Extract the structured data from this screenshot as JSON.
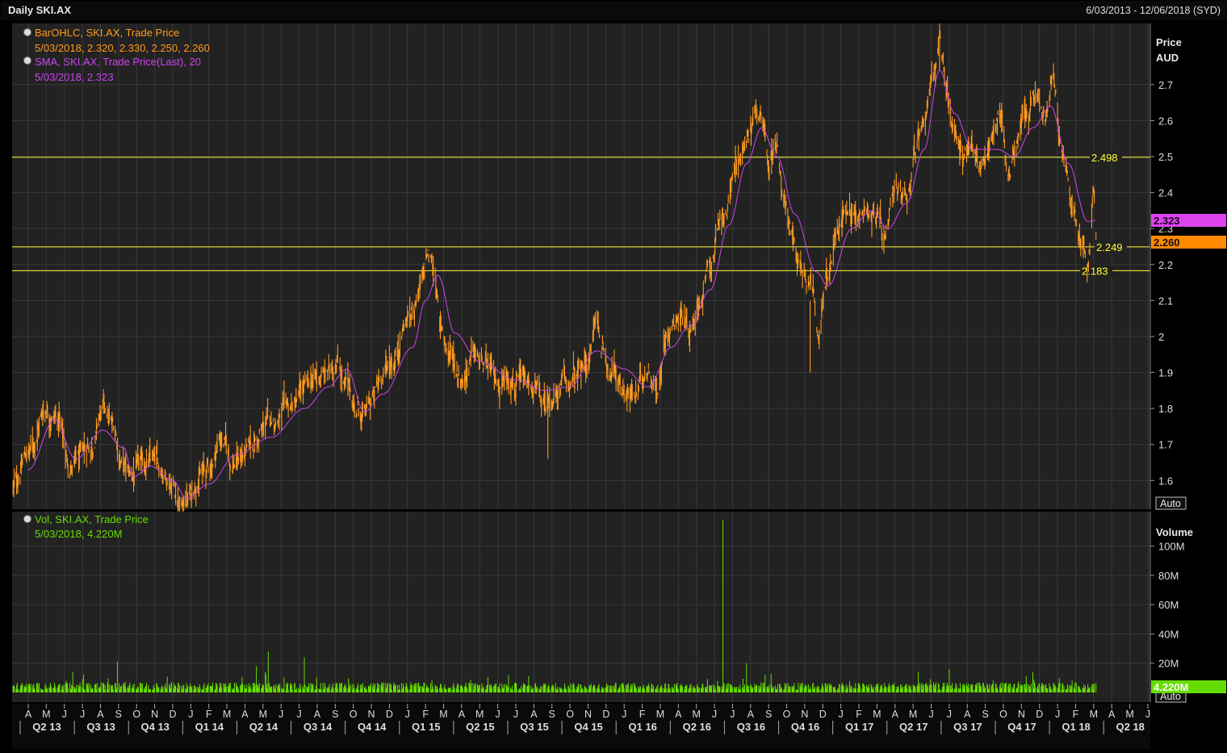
{
  "header": {
    "title": "Daily SKI.AX",
    "date_range": "6/03/2013 - 12/06/2018 (SYD)"
  },
  "colors": {
    "background": "#000000",
    "panel": "#222222",
    "grid": "#3a3a3a",
    "price": "#ff9a1f",
    "sma": "#cc44ee",
    "volume": "#66dd00",
    "hline": "#ffff33",
    "axis_text": "#dddddd"
  },
  "legend": {
    "price_series": "BarOHLC, SKI.AX, Trade Price",
    "price_values": "5/03/2018, 2.320, 2.330, 2.250, 2.260",
    "sma_series": "SMA, SKI.AX, Trade Price(Last),  20",
    "sma_values": "5/03/2018, 2.323",
    "vol_series": "Vol, SKI.AX, Trade Price",
    "vol_values": "5/03/2018, 4.220M"
  },
  "price_axis": {
    "label1": "Price",
    "label2": "AUD",
    "ticks": [
      "1.6",
      "1.7",
      "1.8",
      "1.9",
      "2",
      "2.1",
      "2.2",
      "2.3",
      "2.4",
      "2.5",
      "2.6",
      "2.7"
    ],
    "tick_values": [
      1.6,
      1.7,
      1.8,
      1.9,
      2.0,
      2.1,
      2.2,
      2.3,
      2.4,
      2.5,
      2.6,
      2.7
    ],
    "range": [
      1.52,
      2.87
    ],
    "auto_label": "Auto",
    "sma_tag": "2.323",
    "last_tag": "2.260"
  },
  "volume_axis": {
    "label": "Volume",
    "ticks": [
      "20M",
      "40M",
      "60M",
      "80M",
      "100M"
    ],
    "tick_values": [
      20,
      40,
      60,
      80,
      100
    ],
    "range_millions": [
      0,
      118
    ],
    "auto_label": "Auto",
    "last_tag": "4.220M"
  },
  "time_axis": {
    "months": [
      "A",
      "M",
      "J",
      "J",
      "A",
      "S",
      "O",
      "N",
      "D",
      "J",
      "F",
      "M",
      "A",
      "M",
      "J",
      "J",
      "A",
      "S",
      "O",
      "N",
      "D",
      "J",
      "F",
      "M",
      "A",
      "M",
      "J",
      "J",
      "A",
      "S",
      "O",
      "N",
      "D",
      "J",
      "F",
      "M",
      "A",
      "M",
      "J",
      "J",
      "A",
      "S",
      "O",
      "N",
      "D",
      "J",
      "F",
      "M",
      "A",
      "M",
      "J",
      "J",
      "A",
      "S",
      "O",
      "N",
      "D",
      "J",
      "F",
      "M",
      "A",
      "M",
      "J"
    ],
    "quarters": [
      "Q2 13",
      "Q3 13",
      "Q4 13",
      "Q1 14",
      "Q2 14",
      "Q3 14",
      "Q4 14",
      "Q1 15",
      "Q2 15",
      "Q3 15",
      "Q4 15",
      "Q1 16",
      "Q2 16",
      "Q3 16",
      "Q4 16",
      "Q1 17",
      "Q2 17",
      "Q3 17",
      "Q4 17",
      "Q1 18",
      "Q2 18"
    ]
  },
  "horizontal_lines": [
    {
      "value": 2.498,
      "label": "2.498"
    },
    {
      "value": 2.249,
      "label": "2.249"
    },
    {
      "value": 2.183,
      "label": "2.183"
    }
  ],
  "chart_data": {
    "type": "line",
    "price_series_name": "BarOHLC, SKI.AX, Trade Price",
    "sma_series_name": "SMA, SKI.AX, Trade Price(Last),  20",
    "volume_series_name": "Vol, SKI.AX, Trade Price",
    "price_points": [
      [
        "2013-03-06",
        1.58
      ],
      [
        "2013-04-01",
        1.68
      ],
      [
        "2013-05-01",
        1.8
      ],
      [
        "2013-05-20",
        1.78
      ],
      [
        "2013-06-10",
        1.64
      ],
      [
        "2013-06-25",
        1.65
      ],
      [
        "2013-07-15",
        1.7
      ],
      [
        "2013-08-05",
        1.79
      ],
      [
        "2013-08-25",
        1.74
      ],
      [
        "2013-09-05",
        1.66
      ],
      [
        "2013-09-20",
        1.61
      ],
      [
        "2013-10-05",
        1.63
      ],
      [
        "2013-10-25",
        1.65
      ],
      [
        "2013-11-15",
        1.63
      ],
      [
        "2013-11-30",
        1.6
      ],
      [
        "2013-12-15",
        1.53
      ],
      [
        "2014-01-01",
        1.56
      ],
      [
        "2014-01-15",
        1.62
      ],
      [
        "2014-02-01",
        1.63
      ],
      [
        "2014-02-20",
        1.72
      ],
      [
        "2014-03-10",
        1.65
      ],
      [
        "2014-04-01",
        1.67
      ],
      [
        "2014-04-20",
        1.71
      ],
      [
        "2014-05-10",
        1.76
      ],
      [
        "2014-06-01",
        1.78
      ],
      [
        "2014-06-20",
        1.8
      ],
      [
        "2014-07-10",
        1.85
      ],
      [
        "2014-08-01",
        1.88
      ],
      [
        "2014-08-20",
        1.9
      ],
      [
        "2014-09-05",
        1.94
      ],
      [
        "2014-09-20",
        1.86
      ],
      [
        "2014-10-05",
        1.8
      ],
      [
        "2014-10-20",
        1.78
      ],
      [
        "2014-11-05",
        1.83
      ],
      [
        "2014-11-20",
        1.9
      ],
      [
        "2014-12-05",
        1.93
      ],
      [
        "2015-01-01",
        2.05
      ],
      [
        "2015-01-25",
        2.14
      ],
      [
        "2015-02-05",
        2.22
      ],
      [
        "2015-02-15",
        2.18
      ],
      [
        "2015-02-25",
        2.02
      ],
      [
        "2015-03-10",
        1.96
      ],
      [
        "2015-04-01",
        1.89
      ],
      [
        "2015-04-20",
        1.95
      ],
      [
        "2015-05-10",
        1.91
      ],
      [
        "2015-06-01",
        1.87
      ],
      [
        "2015-06-20",
        1.9
      ],
      [
        "2015-07-10",
        1.86
      ],
      [
        "2015-08-01",
        1.85
      ],
      [
        "2015-08-20",
        1.8
      ],
      [
        "2015-09-05",
        1.84
      ],
      [
        "2015-09-25",
        1.86
      ],
      [
        "2015-10-10",
        1.88
      ],
      [
        "2015-11-01",
        1.93
      ],
      [
        "2015-11-15",
        2.05
      ],
      [
        "2015-11-25",
        1.97
      ],
      [
        "2015-12-10",
        1.91
      ],
      [
        "2016-01-01",
        1.86
      ],
      [
        "2016-01-20",
        1.83
      ],
      [
        "2016-02-10",
        1.92
      ],
      [
        "2016-02-25",
        1.86
      ],
      [
        "2016-03-15",
        2.03
      ],
      [
        "2016-04-01",
        2.07
      ],
      [
        "2016-04-20",
        2.03
      ],
      [
        "2016-05-10",
        2.12
      ],
      [
        "2016-05-25",
        2.2
      ],
      [
        "2016-06-10",
        2.3
      ],
      [
        "2016-06-25",
        2.37
      ],
      [
        "2016-07-10",
        2.5
      ],
      [
        "2016-07-25",
        2.53
      ],
      [
        "2016-08-10",
        2.63
      ],
      [
        "2016-08-20",
        2.58
      ],
      [
        "2016-09-01",
        2.48
      ],
      [
        "2016-09-15",
        2.55
      ],
      [
        "2016-09-25",
        2.41
      ],
      [
        "2016-10-10",
        2.28
      ],
      [
        "2016-10-25",
        2.2
      ],
      [
        "2016-11-10",
        2.17
      ],
      [
        "2016-11-25",
        2.03
      ],
      [
        "2016-12-10",
        2.17
      ],
      [
        "2016-12-25",
        2.28
      ],
      [
        "2017-01-15",
        2.37
      ],
      [
        "2017-02-01",
        2.33
      ],
      [
        "2017-02-15",
        2.36
      ],
      [
        "2017-03-01",
        2.34
      ],
      [
        "2017-03-15",
        2.25
      ],
      [
        "2017-04-01",
        2.38
      ],
      [
        "2017-04-20",
        2.4
      ],
      [
        "2017-05-05",
        2.52
      ],
      [
        "2017-05-20",
        2.62
      ],
      [
        "2017-06-05",
        2.74
      ],
      [
        "2017-06-15",
        2.82
      ],
      [
        "2017-06-25",
        2.68
      ],
      [
        "2017-07-10",
        2.58
      ],
      [
        "2017-07-25",
        2.5
      ],
      [
        "2017-08-10",
        2.52
      ],
      [
        "2017-08-25",
        2.48
      ],
      [
        "2017-09-10",
        2.55
      ],
      [
        "2017-09-25",
        2.63
      ],
      [
        "2017-10-10",
        2.46
      ],
      [
        "2017-10-25",
        2.54
      ],
      [
        "2017-11-10",
        2.62
      ],
      [
        "2017-11-25",
        2.66
      ],
      [
        "2017-12-10",
        2.6
      ],
      [
        "2017-12-25",
        2.7
      ],
      [
        "2018-01-10",
        2.5
      ],
      [
        "2018-01-25",
        2.37
      ],
      [
        "2018-02-10",
        2.28
      ],
      [
        "2018-02-20",
        2.21
      ],
      [
        "2018-03-01",
        2.4
      ],
      [
        "2018-03-05",
        2.26
      ]
    ],
    "sma_points": [
      [
        "2013-04-01",
        1.63
      ],
      [
        "2013-05-15",
        1.77
      ],
      [
        "2013-06-20",
        1.66
      ],
      [
        "2013-08-05",
        1.74
      ],
      [
        "2013-09-10",
        1.69
      ],
      [
        "2013-09-25",
        1.61
      ],
      [
        "2013-10-25",
        1.64
      ],
      [
        "2013-12-01",
        1.6
      ],
      [
        "2013-12-25",
        1.55
      ],
      [
        "2014-02-01",
        1.59
      ],
      [
        "2014-03-15",
        1.67
      ],
      [
        "2014-05-15",
        1.72
      ],
      [
        "2014-07-10",
        1.8
      ],
      [
        "2014-08-20",
        1.86
      ],
      [
        "2014-09-20",
        1.91
      ],
      [
        "2014-10-20",
        1.79
      ],
      [
        "2014-11-20",
        1.84
      ],
      [
        "2015-01-10",
        1.97
      ],
      [
        "2015-02-01",
        2.1
      ],
      [
        "2015-02-20",
        2.17
      ],
      [
        "2015-03-20",
        2.01
      ],
      [
        "2015-05-01",
        1.93
      ],
      [
        "2015-07-01",
        1.88
      ],
      [
        "2015-08-20",
        1.85
      ],
      [
        "2015-10-01",
        1.86
      ],
      [
        "2015-11-15",
        1.96
      ],
      [
        "2016-01-01",
        1.91
      ],
      [
        "2016-02-10",
        1.86
      ],
      [
        "2016-03-20",
        1.97
      ],
      [
        "2016-04-20",
        2.03
      ],
      [
        "2016-05-25",
        2.13
      ],
      [
        "2016-06-25",
        2.31
      ],
      [
        "2016-07-25",
        2.48
      ],
      [
        "2016-08-20",
        2.58
      ],
      [
        "2016-09-15",
        2.5
      ],
      [
        "2016-10-15",
        2.34
      ],
      [
        "2016-11-20",
        2.18
      ],
      [
        "2016-12-10",
        2.14
      ],
      [
        "2017-01-20",
        2.3
      ],
      [
        "2017-02-20",
        2.35
      ],
      [
        "2017-03-20",
        2.3
      ],
      [
        "2017-04-20",
        2.37
      ],
      [
        "2017-05-20",
        2.52
      ],
      [
        "2017-06-15",
        2.74
      ],
      [
        "2017-07-10",
        2.62
      ],
      [
        "2017-08-10",
        2.52
      ],
      [
        "2017-09-20",
        2.52
      ],
      [
        "2017-10-20",
        2.5
      ],
      [
        "2017-11-20",
        2.58
      ],
      [
        "2017-12-20",
        2.64
      ],
      [
        "2018-01-20",
        2.48
      ],
      [
        "2018-02-20",
        2.32
      ],
      [
        "2018-03-05",
        2.323
      ]
    ],
    "volume_baseline_millions": 4,
    "volume_spikes": [
      [
        "2013-06-15",
        14
      ],
      [
        "2013-08-30",
        21
      ],
      [
        "2014-04-20",
        18
      ],
      [
        "2014-05-10",
        28
      ],
      [
        "2014-07-10",
        24
      ],
      [
        "2016-06-15",
        118
      ],
      [
        "2016-07-25",
        20
      ],
      [
        "2017-07-01",
        16
      ],
      [
        "2017-11-20",
        14
      ]
    ],
    "volume_last": 4.22
  }
}
